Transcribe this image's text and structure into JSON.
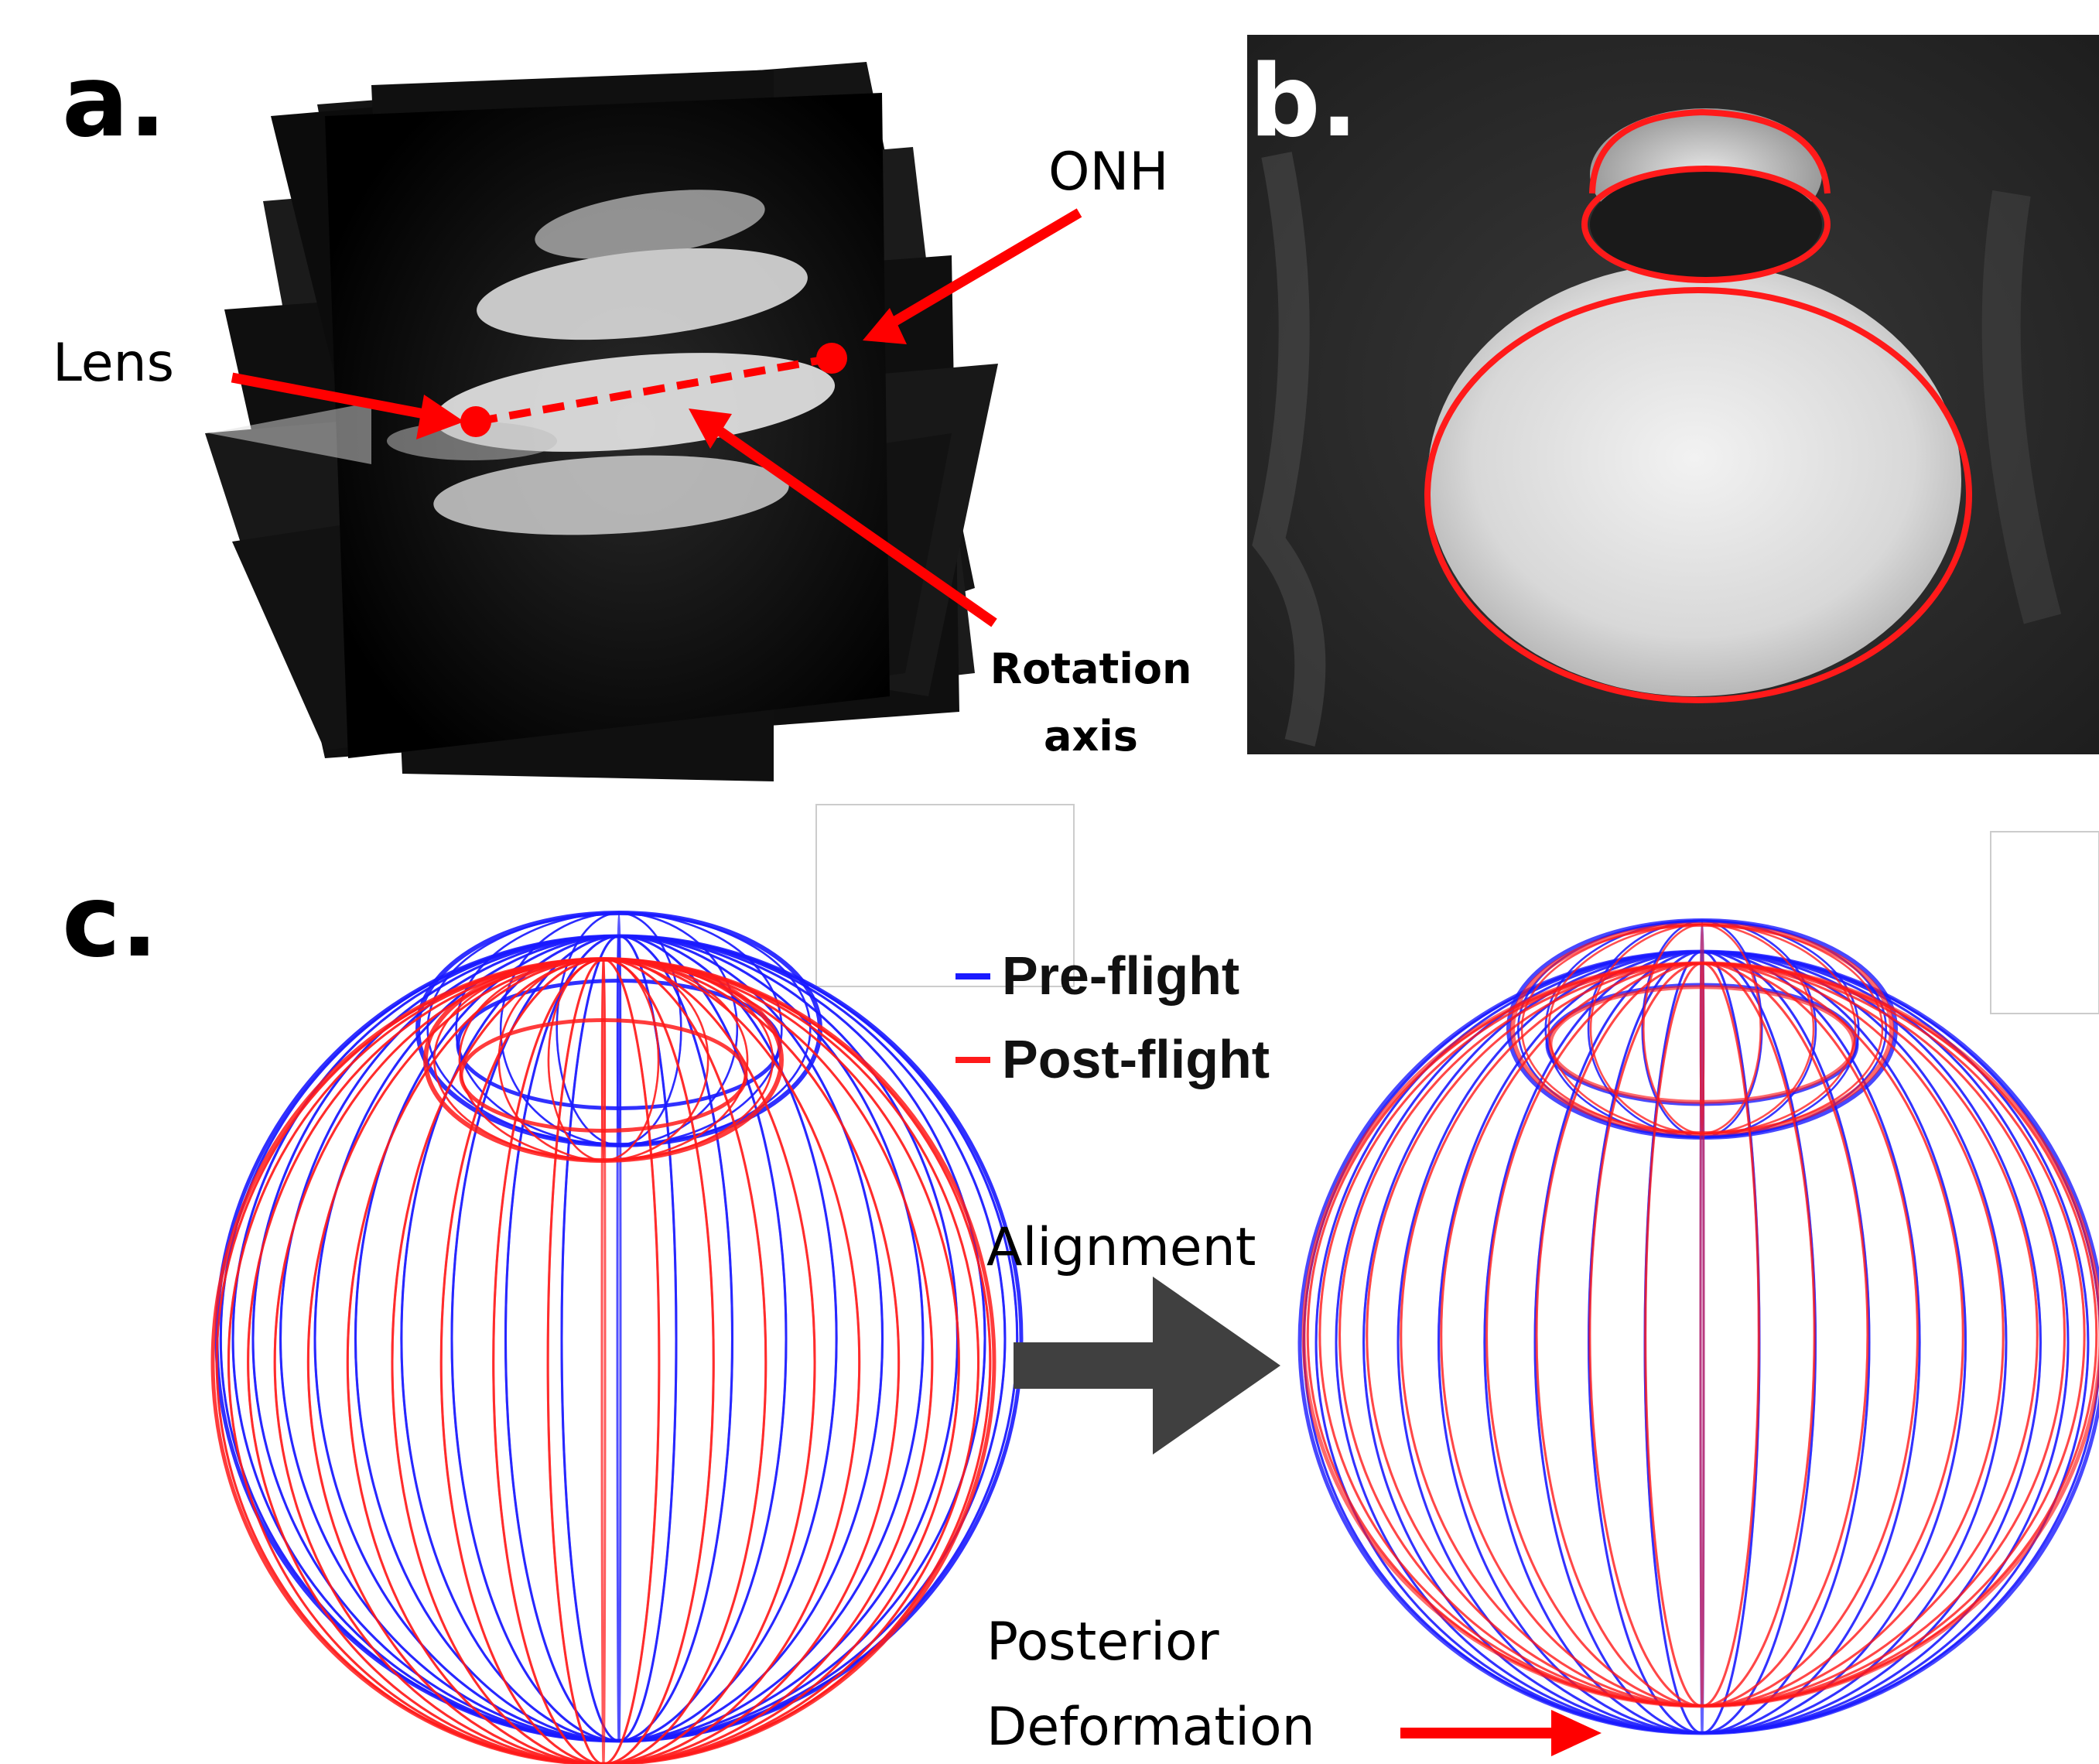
{
  "panels": {
    "a": {
      "label": "a.",
      "annotations": {
        "onh": "ONH",
        "lens": "Lens",
        "rotation_axis_line1": "Rotation",
        "rotation_axis_line2": "axis"
      }
    },
    "b": {
      "label": "b."
    },
    "c": {
      "label": "c.",
      "legend": [
        {
          "name": "Pre-flight",
          "color": "#1a1aff"
        },
        {
          "name": "Post-flight",
          "color": "#ff1a1a"
        }
      ],
      "alignment_label": "Alignment",
      "deformation_label_line1": "Posterior",
      "deformation_label_line2": "Deformation"
    }
  },
  "colors": {
    "pre_flight": "#1a1aff",
    "post_flight": "#ff1a1a",
    "annotation": "#ff0000",
    "arrow_gray": "#404040"
  }
}
